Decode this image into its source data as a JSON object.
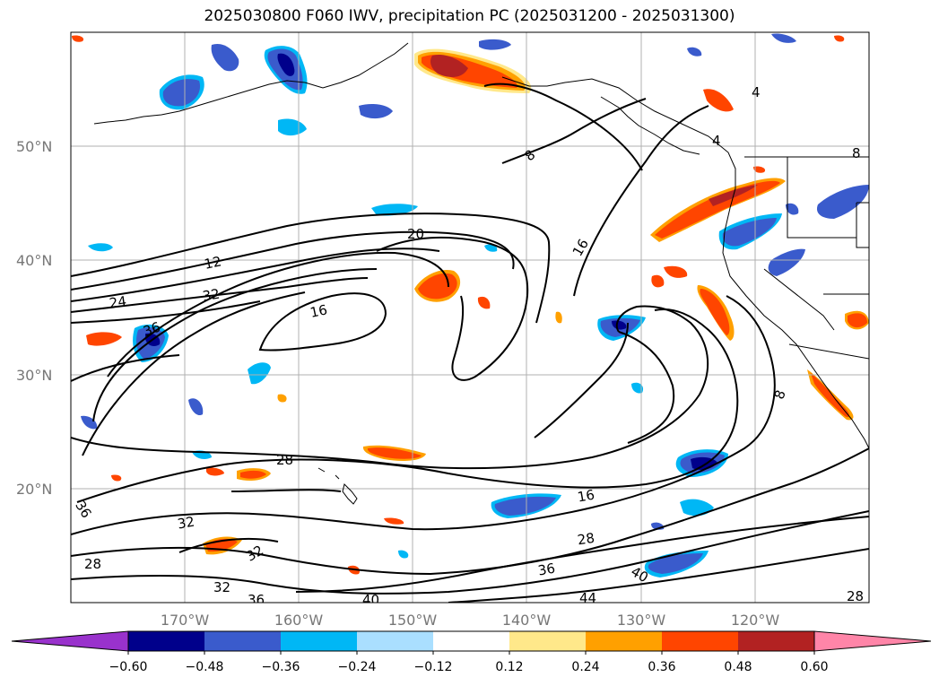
{
  "chart_data": {
    "type": "heatmap",
    "title": "2025030800 F060 IWV, precipitation PC (2025031200 - 2025031300)",
    "map": {
      "lon_range": [
        -180,
        -110
      ],
      "lat_range": [
        10,
        60
      ],
      "lat_ticks": [
        "20°N",
        "30°N",
        "40°N",
        "50°N"
      ],
      "lon_ticks": [
        "170°W",
        "160°W",
        "150°W",
        "140°W",
        "130°W",
        "120°W"
      ],
      "grid": true
    },
    "contours": {
      "variable": "IWV",
      "levels": [
        4,
        8,
        12,
        16,
        20,
        24,
        28,
        32,
        36,
        40,
        44
      ],
      "labels_shown": [
        "8",
        "4",
        "4",
        "8",
        "12",
        "20",
        "16",
        "24",
        "32",
        "36",
        "16",
        "28",
        "16",
        "8",
        "28",
        "36",
        "32",
        "32",
        "28",
        "32",
        "36",
        "40",
        "28",
        "36",
        "40",
        "44",
        "28"
      ]
    },
    "colorbar": {
      "variable": "precipitation PC",
      "ticks": [
        "−0.60",
        "−0.48",
        "−0.36",
        "−0.24",
        "−0.12",
        "0.12",
        "0.24",
        "0.36",
        "0.48",
        "0.60"
      ],
      "colors": [
        "#9932cc",
        "#00008b",
        "#3a5bcc",
        "#00b7f5",
        "#aadfff",
        "#ffffff",
        "#ffe88a",
        "#ffa000",
        "#ff4500",
        "#b22222",
        "#ff85a8"
      ],
      "extend": "both"
    }
  }
}
